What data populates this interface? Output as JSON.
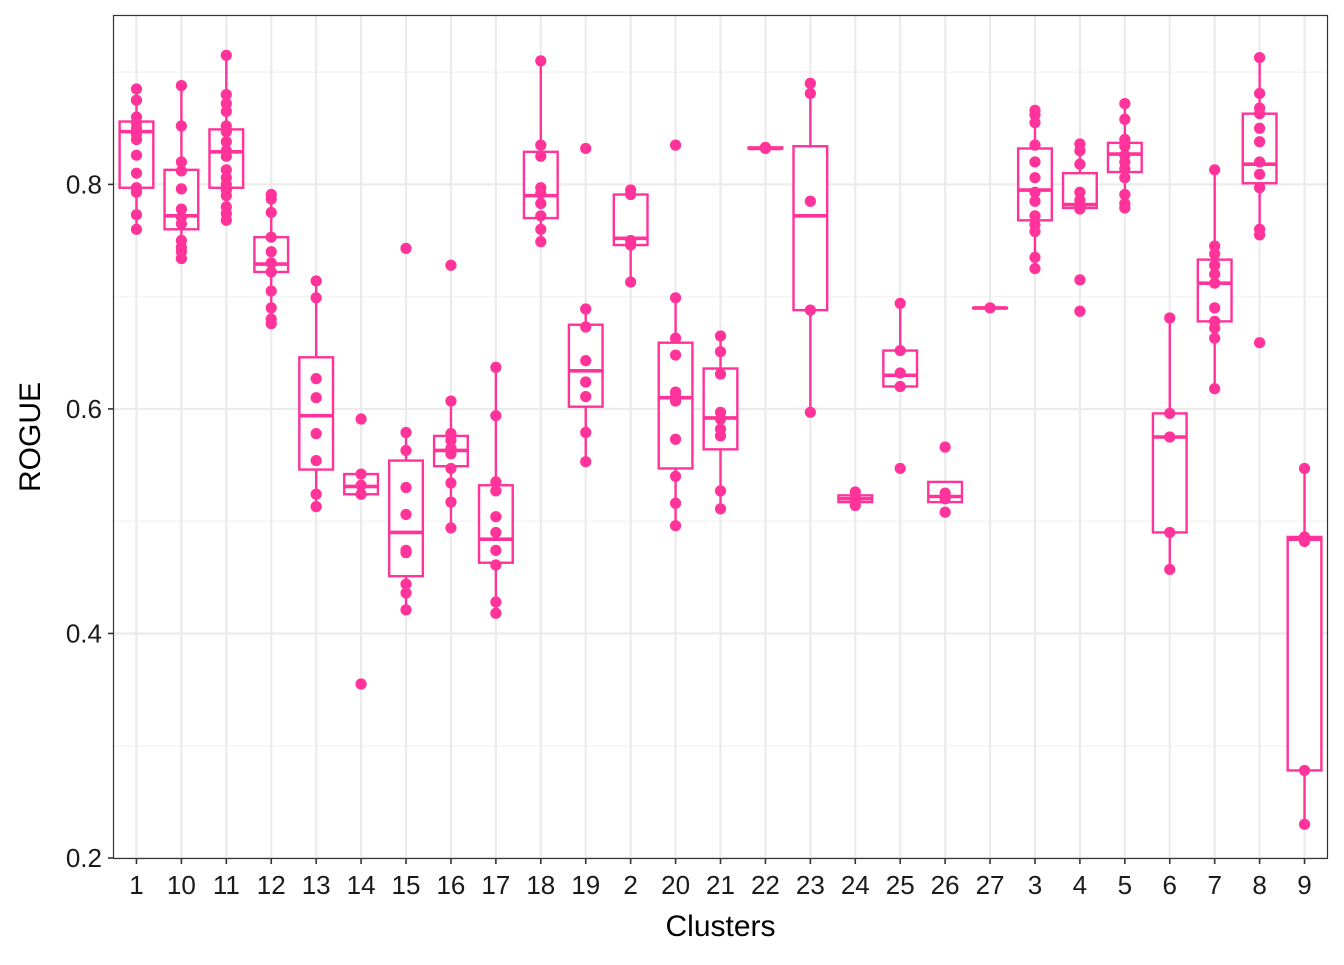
{
  "chart_data": {
    "type": "boxplot",
    "xlabel": "Clusters",
    "ylabel": "ROGUE",
    "ylim": [
      0.2,
      0.95
    ],
    "y_ticks": [
      "0.2",
      "0.4",
      "0.6",
      "0.8"
    ],
    "grid": true,
    "color": "#FF3399",
    "categories": [
      "1",
      "10",
      "11",
      "12",
      "13",
      "14",
      "15",
      "16",
      "17",
      "18",
      "19",
      "2",
      "20",
      "21",
      "22",
      "23",
      "24",
      "25",
      "26",
      "27",
      "3",
      "4",
      "5",
      "6",
      "7",
      "8",
      "9"
    ],
    "boxes": [
      {
        "cluster": "1",
        "whisker_low": 0.76,
        "q1": 0.797,
        "median": 0.847,
        "q3": 0.856,
        "whisker_high": 0.885,
        "points": [
          0.885,
          0.875,
          0.86,
          0.855,
          0.85,
          0.845,
          0.84,
          0.826,
          0.81,
          0.797,
          0.793,
          0.773,
          0.76
        ]
      },
      {
        "cluster": "10",
        "whisker_low": 0.734,
        "q1": 0.76,
        "median": 0.772,
        "q3": 0.813,
        "whisker_high": 0.888,
        "points": [
          0.888,
          0.852,
          0.82,
          0.812,
          0.796,
          0.778,
          0.771,
          0.765,
          0.75,
          0.744,
          0.74,
          0.734
        ]
      },
      {
        "cluster": "11",
        "whisker_low": 0.767,
        "q1": 0.797,
        "median": 0.829,
        "q3": 0.849,
        "whisker_high": 0.915,
        "points": [
          0.915,
          0.88,
          0.872,
          0.865,
          0.852,
          0.847,
          0.838,
          0.83,
          0.825,
          0.813,
          0.806,
          0.8,
          0.795,
          0.79,
          0.78,
          0.774,
          0.768
        ]
      },
      {
        "cluster": "12",
        "whisker_low": 0.676,
        "q1": 0.722,
        "median": 0.729,
        "q3": 0.753,
        "whisker_high": 0.791,
        "points": [
          0.791,
          0.787,
          0.775,
          0.753,
          0.74,
          0.73,
          0.722,
          0.705,
          0.69,
          0.68,
          0.676
        ]
      },
      {
        "cluster": "13",
        "whisker_low": 0.513,
        "q1": 0.546,
        "median": 0.594,
        "q3": 0.646,
        "whisker_high": 0.714,
        "points": [
          0.714,
          0.699,
          0.627,
          0.61,
          0.578,
          0.554,
          0.524,
          0.513
        ]
      },
      {
        "cluster": "14",
        "whisker_low": 0.524,
        "q1": 0.524,
        "median": 0.531,
        "q3": 0.542,
        "whisker_high": 0.542,
        "points": [
          0.591,
          0.542,
          0.532,
          0.524,
          0.355
        ]
      },
      {
        "cluster": "15",
        "whisker_low": 0.421,
        "q1": 0.451,
        "median": 0.49,
        "q3": 0.554,
        "whisker_high": 0.579,
        "points": [
          0.743,
          0.579,
          0.563,
          0.53,
          0.506,
          0.474,
          0.472,
          0.444,
          0.436,
          0.421
        ]
      },
      {
        "cluster": "16",
        "whisker_low": 0.494,
        "q1": 0.549,
        "median": 0.563,
        "q3": 0.576,
        "whisker_high": 0.607,
        "points": [
          0.728,
          0.607,
          0.578,
          0.572,
          0.565,
          0.56,
          0.547,
          0.534,
          0.517,
          0.494
        ]
      },
      {
        "cluster": "17",
        "whisker_low": 0.418,
        "q1": 0.463,
        "median": 0.484,
        "q3": 0.532,
        "whisker_high": 0.637,
        "points": [
          0.637,
          0.594,
          0.535,
          0.527,
          0.504,
          0.49,
          0.474,
          0.461,
          0.428,
          0.418
        ]
      },
      {
        "cluster": "18",
        "whisker_low": 0.749,
        "q1": 0.77,
        "median": 0.79,
        "q3": 0.829,
        "whisker_high": 0.91,
        "points": [
          0.91,
          0.835,
          0.825,
          0.797,
          0.792,
          0.783,
          0.772,
          0.76,
          0.749
        ]
      },
      {
        "cluster": "19",
        "whisker_low": 0.553,
        "q1": 0.602,
        "median": 0.634,
        "q3": 0.675,
        "whisker_high": 0.689,
        "points": [
          0.832,
          0.689,
          0.673,
          0.643,
          0.624,
          0.611,
          0.579,
          0.553
        ]
      },
      {
        "cluster": "2",
        "whisker_low": 0.713,
        "q1": 0.746,
        "median": 0.752,
        "q3": 0.791,
        "whisker_high": 0.795,
        "points": [
          0.795,
          0.791,
          0.75,
          0.746,
          0.713
        ]
      },
      {
        "cluster": "20",
        "whisker_low": 0.496,
        "q1": 0.547,
        "median": 0.61,
        "q3": 0.659,
        "whisker_high": 0.699,
        "points": [
          0.835,
          0.699,
          0.663,
          0.648,
          0.615,
          0.611,
          0.607,
          0.573,
          0.54,
          0.516,
          0.496
        ]
      },
      {
        "cluster": "21",
        "whisker_low": 0.511,
        "q1": 0.564,
        "median": 0.592,
        "q3": 0.636,
        "whisker_high": 0.665,
        "points": [
          0.665,
          0.651,
          0.631,
          0.597,
          0.591,
          0.582,
          0.576,
          0.527,
          0.511
        ]
      },
      {
        "cluster": "22",
        "whisker_low": 0.832,
        "q1": 0.832,
        "median": 0.832,
        "q3": 0.833,
        "whisker_high": 0.833,
        "points": [
          0.833,
          0.832
        ]
      },
      {
        "cluster": "23",
        "whisker_low": 0.597,
        "q1": 0.688,
        "median": 0.772,
        "q3": 0.834,
        "whisker_high": 0.89,
        "points": [
          0.89,
          0.881,
          0.785,
          0.688,
          0.597
        ]
      },
      {
        "cluster": "24",
        "whisker_low": 0.514,
        "q1": 0.517,
        "median": 0.52,
        "q3": 0.523,
        "whisker_high": 0.526,
        "points": [
          0.526,
          0.521,
          0.517,
          0.514
        ]
      },
      {
        "cluster": "25",
        "whisker_low": 0.62,
        "q1": 0.62,
        "median": 0.63,
        "q3": 0.652,
        "whisker_high": 0.694,
        "points": [
          0.694,
          0.652,
          0.632,
          0.62,
          0.547
        ]
      },
      {
        "cluster": "26",
        "whisker_low": 0.517,
        "q1": 0.517,
        "median": 0.522,
        "q3": 0.535,
        "whisker_high": 0.535,
        "points": [
          0.566,
          0.525,
          0.52,
          0.508
        ]
      },
      {
        "cluster": "27",
        "whisker_low": 0.69,
        "q1": 0.69,
        "median": 0.69,
        "q3": 0.69,
        "whisker_high": 0.69,
        "points": [
          0.69
        ]
      },
      {
        "cluster": "3",
        "whisker_low": 0.725,
        "q1": 0.768,
        "median": 0.795,
        "q3": 0.832,
        "whisker_high": 0.866,
        "points": [
          0.866,
          0.862,
          0.855,
          0.835,
          0.82,
          0.806,
          0.793,
          0.785,
          0.772,
          0.764,
          0.758,
          0.735,
          0.725
        ]
      },
      {
        "cluster": "4",
        "whisker_low": 0.778,
        "q1": 0.779,
        "median": 0.782,
        "q3": 0.81,
        "whisker_high": 0.836,
        "points": [
          0.836,
          0.83,
          0.818,
          0.793,
          0.786,
          0.781,
          0.778,
          0.715,
          0.687
        ]
      },
      {
        "cluster": "5",
        "whisker_low": 0.779,
        "q1": 0.811,
        "median": 0.827,
        "q3": 0.837,
        "whisker_high": 0.872,
        "points": [
          0.872,
          0.858,
          0.84,
          0.834,
          0.826,
          0.82,
          0.814,
          0.806,
          0.791,
          0.783,
          0.779
        ]
      },
      {
        "cluster": "6",
        "whisker_low": 0.457,
        "q1": 0.49,
        "median": 0.575,
        "q3": 0.596,
        "whisker_high": 0.681,
        "points": [
          0.681,
          0.596,
          0.575,
          0.49,
          0.457
        ]
      },
      {
        "cluster": "7",
        "whisker_low": 0.618,
        "q1": 0.678,
        "median": 0.712,
        "q3": 0.733,
        "whisker_high": 0.813,
        "points": [
          0.813,
          0.745,
          0.738,
          0.728,
          0.72,
          0.712,
          0.69,
          0.678,
          0.672,
          0.663,
          0.618
        ]
      },
      {
        "cluster": "8",
        "whisker_low": 0.755,
        "q1": 0.801,
        "median": 0.818,
        "q3": 0.863,
        "whisker_high": 0.913,
        "points": [
          0.913,
          0.881,
          0.868,
          0.863,
          0.85,
          0.838,
          0.82,
          0.809,
          0.797,
          0.76,
          0.755,
          0.659
        ]
      },
      {
        "cluster": "9",
        "whisker_low": 0.23,
        "q1": 0.278,
        "median": 0.484,
        "q3": 0.486,
        "whisker_high": 0.547,
        "points": [
          0.547,
          0.486,
          0.482,
          0.278,
          0.23
        ]
      }
    ]
  }
}
